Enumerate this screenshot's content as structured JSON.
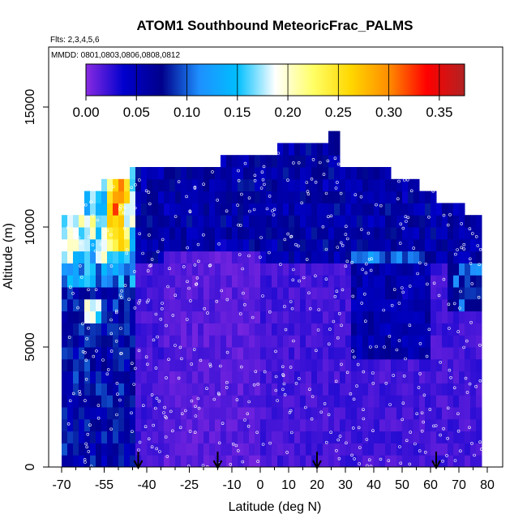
{
  "chart_data": {
    "type": "heatmap",
    "title": "ATOM1 Southbound MeteoricFrac_PALMS",
    "subtitle_flights": "Flts: 2,3,4,5,6",
    "subtitle_dates": "MMDD: 0801,0803,0806,0808,0812",
    "xlabel": "Latitude (deg N)",
    "ylabel": "Altitude (m)",
    "xlim": [
      -70,
      80
    ],
    "ylim": [
      0,
      17500
    ],
    "x_ticks": [
      -70,
      -55,
      -40,
      -25,
      -10,
      0,
      10,
      20,
      30,
      40,
      50,
      60,
      70,
      80
    ],
    "x_tick_labels": [
      "-70",
      "-55",
      "-40",
      "-25",
      "-10",
      "0",
      "10",
      "20",
      "30",
      "40",
      "50",
      "60",
      "70",
      "80"
    ],
    "x_minor_ticks": [
      -65,
      -60,
      -50,
      -45,
      -35,
      -30,
      -20,
      -15,
      -5,
      5,
      15,
      25,
      35,
      45,
      55,
      65,
      75
    ],
    "y_ticks": [
      0,
      5000,
      10000,
      15000
    ],
    "y_tick_labels": [
      "0",
      "5000",
      "10000",
      "15000"
    ],
    "colorbar": {
      "range": [
        0,
        0.375
      ],
      "ticks": [
        0.0,
        0.05,
        0.1,
        0.15,
        0.2,
        0.25,
        0.3,
        0.35
      ],
      "tick_labels": [
        "0.00",
        "0.05",
        "0.10",
        "0.15",
        "0.20",
        "0.25",
        "0.30",
        "0.35"
      ],
      "colors": [
        "#8a2be2",
        "#0000cd",
        "#00008b",
        "#1e90ff",
        "#00bfff",
        "#ffffff",
        "#ffff66",
        "#ffd700",
        "#ff8c00",
        "#ff0000",
        "#b22222"
      ]
    },
    "profile_markers": [
      -43,
      -15,
      20,
      62
    ],
    "altitude_bin_m": 500,
    "lat_bin_deg": 2,
    "grid": false,
    "legend": "colorbar top"
  }
}
